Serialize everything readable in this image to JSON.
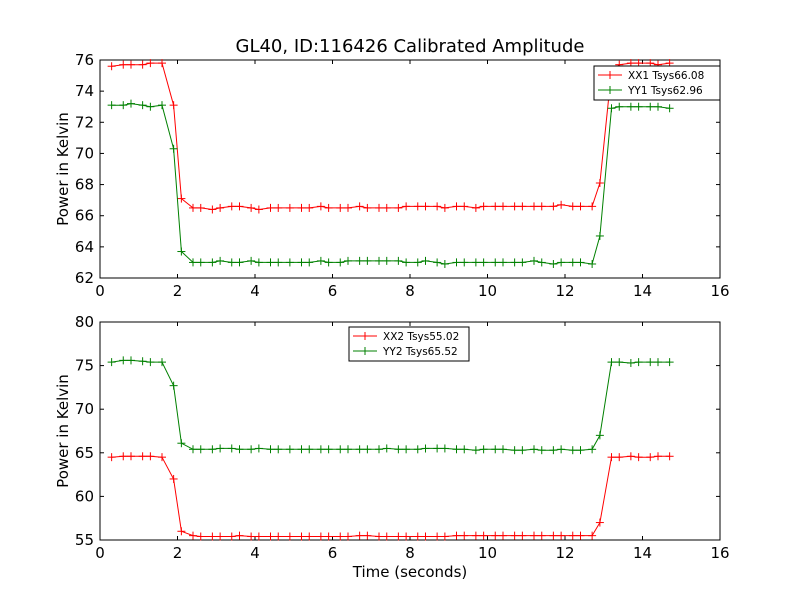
{
  "figure": {
    "title": "GL40, ID:116426 Calibrated Amplitude"
  },
  "chart_data": [
    {
      "type": "line",
      "title": "GL40, ID:116426 Calibrated Amplitude",
      "xlabel": "",
      "ylabel": "Power in Kelvin",
      "xlim": [
        0,
        16
      ],
      "ylim": [
        62,
        76
      ],
      "xticks": [
        0,
        2,
        4,
        6,
        8,
        10,
        12,
        14,
        16
      ],
      "yticks": [
        62,
        64,
        66,
        68,
        70,
        72,
        74,
        76
      ],
      "grid": false,
      "legend": "top-right",
      "marker": "+",
      "x": [
        0.3,
        0.6,
        0.8,
        1.1,
        1.3,
        1.6,
        1.9,
        2.1,
        2.4,
        2.6,
        2.9,
        3.1,
        3.4,
        3.6,
        3.9,
        4.1,
        4.4,
        4.6,
        4.9,
        5.2,
        5.4,
        5.7,
        5.9,
        6.2,
        6.4,
        6.7,
        6.9,
        7.2,
        7.4,
        7.7,
        7.9,
        8.2,
        8.4,
        8.7,
        8.9,
        9.2,
        9.4,
        9.7,
        9.9,
        10.2,
        10.4,
        10.7,
        10.9,
        11.2,
        11.4,
        11.7,
        11.9,
        12.2,
        12.4,
        12.7,
        12.9,
        13.2,
        13.4,
        13.7,
        13.9,
        14.2,
        14.4,
        14.7
      ],
      "series": [
        {
          "name": "XX1 Tsys66.08",
          "color": "#ff0000",
          "values": [
            75.6,
            75.7,
            75.7,
            75.7,
            75.8,
            75.8,
            73.1,
            67.1,
            66.5,
            66.5,
            66.4,
            66.5,
            66.6,
            66.6,
            66.5,
            66.4,
            66.5,
            66.5,
            66.5,
            66.5,
            66.5,
            66.6,
            66.5,
            66.5,
            66.5,
            66.6,
            66.5,
            66.5,
            66.5,
            66.5,
            66.6,
            66.6,
            66.6,
            66.6,
            66.5,
            66.6,
            66.6,
            66.5,
            66.6,
            66.6,
            66.6,
            66.6,
            66.6,
            66.6,
            66.6,
            66.6,
            66.7,
            66.6,
            66.6,
            66.6,
            68.1,
            75.3,
            75.7,
            75.8,
            75.8,
            75.8,
            75.7,
            75.8
          ]
        },
        {
          "name": "YY1 Tsys62.96",
          "color": "#008000",
          "values": [
            73.1,
            73.1,
            73.2,
            73.1,
            73.0,
            73.1,
            70.3,
            63.7,
            63.0,
            63.0,
            63.0,
            63.1,
            63.0,
            63.0,
            63.1,
            63.0,
            63.0,
            63.0,
            63.0,
            63.0,
            63.0,
            63.1,
            63.0,
            63.0,
            63.1,
            63.1,
            63.1,
            63.1,
            63.1,
            63.1,
            63.0,
            63.0,
            63.1,
            63.0,
            62.9,
            63.0,
            63.0,
            63.0,
            63.0,
            63.0,
            63.0,
            63.0,
            63.0,
            63.1,
            63.0,
            62.9,
            63.0,
            63.0,
            63.0,
            62.9,
            64.7,
            72.9,
            73.0,
            73.0,
            73.0,
            73.0,
            73.0,
            72.9
          ]
        }
      ]
    },
    {
      "type": "line",
      "title": "",
      "xlabel": "Time (seconds)",
      "ylabel": "Power in Kelvin",
      "xlim": [
        0,
        16
      ],
      "ylim": [
        55,
        80
      ],
      "xticks": [
        0,
        2,
        4,
        6,
        8,
        10,
        12,
        14,
        16
      ],
      "yticks": [
        55,
        60,
        65,
        70,
        75,
        80
      ],
      "grid": false,
      "legend": "top-center",
      "marker": "+",
      "x": [
        0.3,
        0.6,
        0.8,
        1.1,
        1.3,
        1.6,
        1.9,
        2.1,
        2.4,
        2.6,
        2.9,
        3.1,
        3.4,
        3.6,
        3.9,
        4.1,
        4.4,
        4.6,
        4.9,
        5.2,
        5.4,
        5.7,
        5.9,
        6.2,
        6.4,
        6.7,
        6.9,
        7.2,
        7.4,
        7.7,
        7.9,
        8.2,
        8.4,
        8.7,
        8.9,
        9.2,
        9.4,
        9.7,
        9.9,
        10.2,
        10.4,
        10.7,
        10.9,
        11.2,
        11.4,
        11.7,
        11.9,
        12.2,
        12.4,
        12.7,
        12.9,
        13.2,
        13.4,
        13.7,
        13.9,
        14.2,
        14.4,
        14.7
      ],
      "series": [
        {
          "name": "XX2 Tsys55.02",
          "color": "#ff0000",
          "values": [
            64.5,
            64.6,
            64.6,
            64.6,
            64.6,
            64.5,
            62.0,
            56.0,
            55.5,
            55.4,
            55.4,
            55.4,
            55.4,
            55.5,
            55.4,
            55.4,
            55.4,
            55.4,
            55.4,
            55.4,
            55.4,
            55.4,
            55.4,
            55.4,
            55.4,
            55.5,
            55.5,
            55.4,
            55.4,
            55.4,
            55.4,
            55.4,
            55.4,
            55.4,
            55.4,
            55.5,
            55.5,
            55.5,
            55.5,
            55.5,
            55.5,
            55.5,
            55.5,
            55.5,
            55.5,
            55.5,
            55.5,
            55.5,
            55.5,
            55.5,
            57.0,
            64.5,
            64.5,
            64.6,
            64.5,
            64.5,
            64.6,
            64.6
          ]
        },
        {
          "name": "YY2 Tsys65.52",
          "color": "#008000",
          "values": [
            75.4,
            75.6,
            75.6,
            75.5,
            75.4,
            75.4,
            72.7,
            66.1,
            65.4,
            65.4,
            65.4,
            65.5,
            65.5,
            65.4,
            65.4,
            65.5,
            65.4,
            65.4,
            65.4,
            65.4,
            65.4,
            65.4,
            65.4,
            65.4,
            65.4,
            65.4,
            65.4,
            65.4,
            65.5,
            65.4,
            65.4,
            65.4,
            65.5,
            65.5,
            65.5,
            65.4,
            65.4,
            65.3,
            65.4,
            65.4,
            65.4,
            65.3,
            65.3,
            65.4,
            65.3,
            65.3,
            65.4,
            65.3,
            65.3,
            65.4,
            67.0,
            75.4,
            75.4,
            75.3,
            75.4,
            75.4,
            75.4,
            75.4
          ]
        }
      ]
    }
  ]
}
